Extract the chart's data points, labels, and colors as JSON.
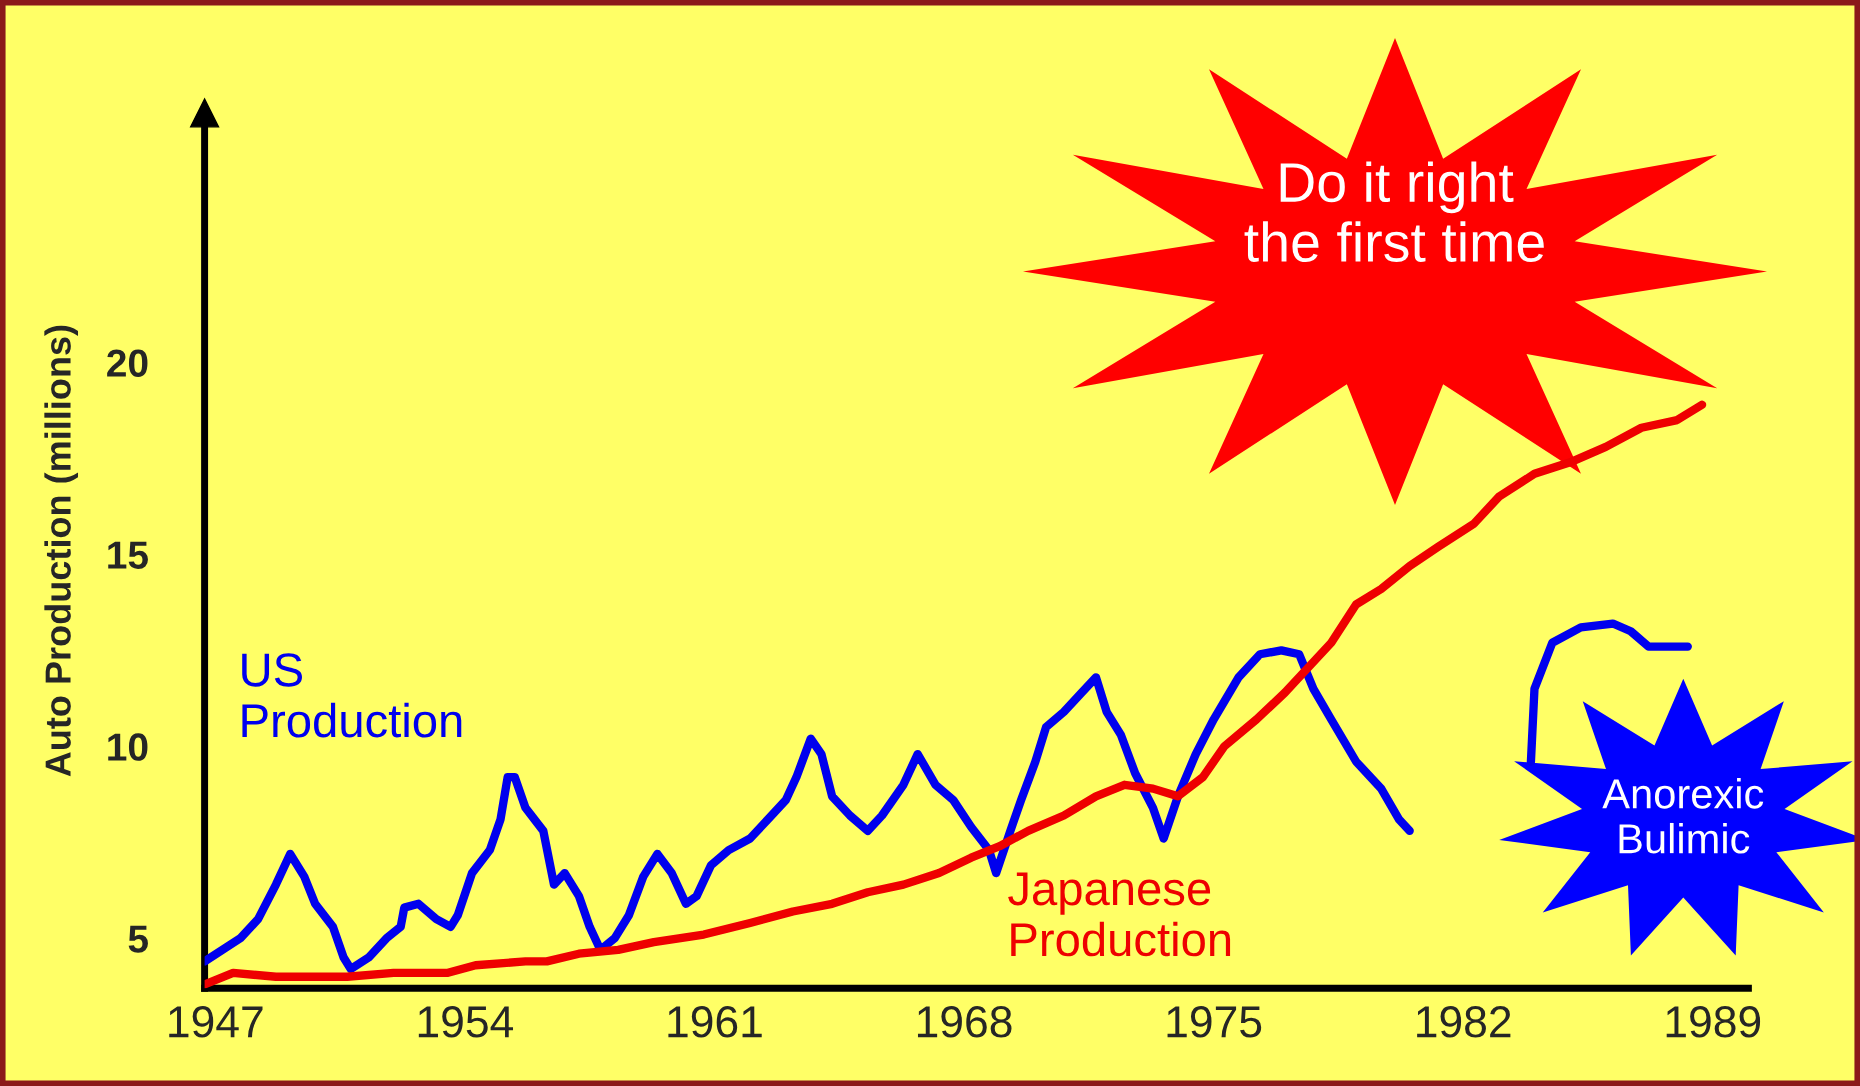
{
  "chart_data": {
    "type": "line",
    "ylabel": "Auto Production (millions)",
    "xlim": [
      1946.7,
      1990
    ],
    "ylim": [
      3.7,
      26.5
    ],
    "xticks": [
      1947,
      1954,
      1961,
      1968,
      1975,
      1982,
      1989
    ],
    "yticks": [
      5,
      10,
      15,
      20
    ],
    "grid": false,
    "legend": false,
    "annotations": [
      "Do it right\nthe first time",
      "Anorexic\nBulimic"
    ],
    "series": [
      {
        "name": "US\nProduction",
        "color": "#0000ee",
        "x": [
          1946.7,
          1947.7,
          1948.2,
          1948.7,
          1949.1,
          1949.5,
          1949.8,
          1950.3,
          1950.6,
          1950.8,
          1951.3,
          1951.8,
          1952.2,
          1952.3,
          1952.7,
          1953.2,
          1953.6,
          1953.8,
          1954.2,
          1954.7,
          1955.0,
          1955.2,
          1955.4,
          1955.7,
          1956.2,
          1956.5,
          1956.8,
          1957.2,
          1957.5,
          1957.8,
          1958.2,
          1958.6,
          1959.0,
          1959.4,
          1959.8,
          1960.2,
          1960.5,
          1960.9,
          1961.4,
          1962.0,
          1962.5,
          1963.0,
          1963.3,
          1963.7,
          1964.0,
          1964.3,
          1964.8,
          1965.3,
          1965.7,
          1966.3,
          1966.7,
          1967.2,
          1967.7,
          1968.2,
          1968.7,
          1968.9,
          1969.3,
          1969.6,
          1970.0,
          1970.3,
          1970.8,
          1971.3,
          1971.7,
          1972.0,
          1972.4,
          1972.8,
          1973.3,
          1973.6,
          1974.0,
          1974.5,
          1975.0,
          1975.7,
          1976.3,
          1976.9,
          1977.4,
          1977.8,
          1978.3,
          1979.0,
          1979.7,
          1980.2,
          1980.5,
          1982.0,
          1983.9,
          1984.0,
          1984.5,
          1985.3,
          1986.2,
          1986.7,
          1987.2,
          1988.3
        ],
        "values": [
          4.4,
          5.0,
          5.5,
          6.4,
          7.2,
          6.6,
          5.9,
          5.3,
          4.5,
          4.2,
          4.5,
          5.0,
          5.3,
          5.8,
          5.9,
          5.5,
          5.3,
          5.6,
          6.7,
          7.3,
          8.1,
          9.2,
          9.2,
          8.4,
          7.8,
          6.4,
          6.7,
          6.1,
          5.3,
          4.7,
          5.0,
          5.6,
          6.6,
          7.2,
          6.7,
          5.9,
          6.1,
          6.9,
          7.3,
          7.6,
          8.1,
          8.6,
          9.2,
          10.2,
          9.8,
          8.7,
          8.2,
          7.8,
          8.2,
          9.0,
          9.8,
          9.0,
          8.6,
          7.9,
          7.3,
          6.7,
          7.8,
          8.6,
          9.6,
          10.5,
          10.9,
          11.4,
          11.8,
          10.9,
          10.3,
          9.3,
          8.4,
          7.6,
          8.7,
          9.8,
          10.7,
          11.8,
          12.4,
          12.5,
          12.4,
          11.5,
          10.7,
          9.6,
          8.9,
          8.1,
          7.8,
          null,
          9.6,
          11.5,
          12.7,
          13.1,
          13.2,
          13.0,
          12.6,
          12.6
        ]
      },
      {
        "name": "Japanese\nProduction",
        "color": "#ee0000",
        "x": [
          1946.7,
          1947.5,
          1948.7,
          1950.7,
          1952.0,
          1953.5,
          1954.3,
          1955.7,
          1956.3,
          1957.2,
          1958.3,
          1959.3,
          1960.7,
          1962.0,
          1963.2,
          1964.3,
          1965.3,
          1966.3,
          1967.3,
          1968.2,
          1969.0,
          1969.8,
          1970.8,
          1971.7,
          1972.5,
          1973.3,
          1974.0,
          1974.7,
          1975.3,
          1976.2,
          1977.0,
          1977.7,
          1978.3,
          1979.0,
          1979.7,
          1980.5,
          1981.3,
          1982.3,
          1983.0,
          1984.0,
          1985.0,
          1986.0,
          1987.0,
          1988.0,
          1988.7
        ],
        "values": [
          3.8,
          4.1,
          4.0,
          4.0,
          4.1,
          4.1,
          4.3,
          4.4,
          4.4,
          4.6,
          4.7,
          4.9,
          5.1,
          5.4,
          5.7,
          5.9,
          6.2,
          6.4,
          6.7,
          7.1,
          7.4,
          7.8,
          8.2,
          8.7,
          9.0,
          8.9,
          8.7,
          9.2,
          10.0,
          10.7,
          11.4,
          12.1,
          12.7,
          13.7,
          14.1,
          14.7,
          15.2,
          15.8,
          16.5,
          17.1,
          17.4,
          17.8,
          18.3,
          18.5,
          18.9
        ]
      }
    ]
  }
}
